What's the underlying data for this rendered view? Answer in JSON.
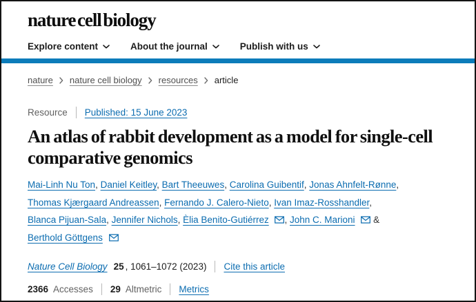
{
  "colors": {
    "link_blue": "#0b6cb0",
    "bar_blue": "#0c7cba"
  },
  "brand": {
    "title": "nature cell biology"
  },
  "nav": {
    "items": [
      {
        "label": "Explore content"
      },
      {
        "label": "About the journal"
      },
      {
        "label": "Publish with us"
      }
    ]
  },
  "breadcrumb": {
    "items": [
      "nature",
      "nature cell biology",
      "resources"
    ],
    "current": "article"
  },
  "article": {
    "type_label": "Resource",
    "published_label": "Published: 15 June 2023",
    "title": "An atlas of rabbit development as a model for single-cell comparative genomics",
    "authors": [
      {
        "name": "Mai-Linh Nu Ton",
        "email": false
      },
      {
        "name": "Daniel Keitley",
        "email": false
      },
      {
        "name": "Bart Theeuwes",
        "email": false
      },
      {
        "name": "Carolina Guibentif",
        "email": false
      },
      {
        "name": "Jonas Ahnfelt-Rønne",
        "email": false
      },
      {
        "name": "Thomas Kjærgaard Andreassen",
        "email": false
      },
      {
        "name": "Fernando J. Calero-Nieto",
        "email": false
      },
      {
        "name": "Ivan Imaz-Rosshandler",
        "email": false
      },
      {
        "name": "Blanca Pijuan-Sala",
        "email": false
      },
      {
        "name": "Jennifer Nichols",
        "email": false
      },
      {
        "name": "Èlia Benito-Gutiérrez",
        "email": true
      },
      {
        "name": "John C. Marioni",
        "email": true
      },
      {
        "name": "Berthold Göttgens",
        "email": true
      }
    ]
  },
  "citation": {
    "journal": "Nature Cell Biology",
    "volume": "25",
    "pages": ", 1061–1072 (2023)",
    "cite_label": "Cite this article"
  },
  "metrics": {
    "accesses": {
      "value": "2366",
      "label": "Accesses"
    },
    "altmetric": {
      "value": "29",
      "label": "Altmetric"
    },
    "metrics_label": "Metrics"
  }
}
